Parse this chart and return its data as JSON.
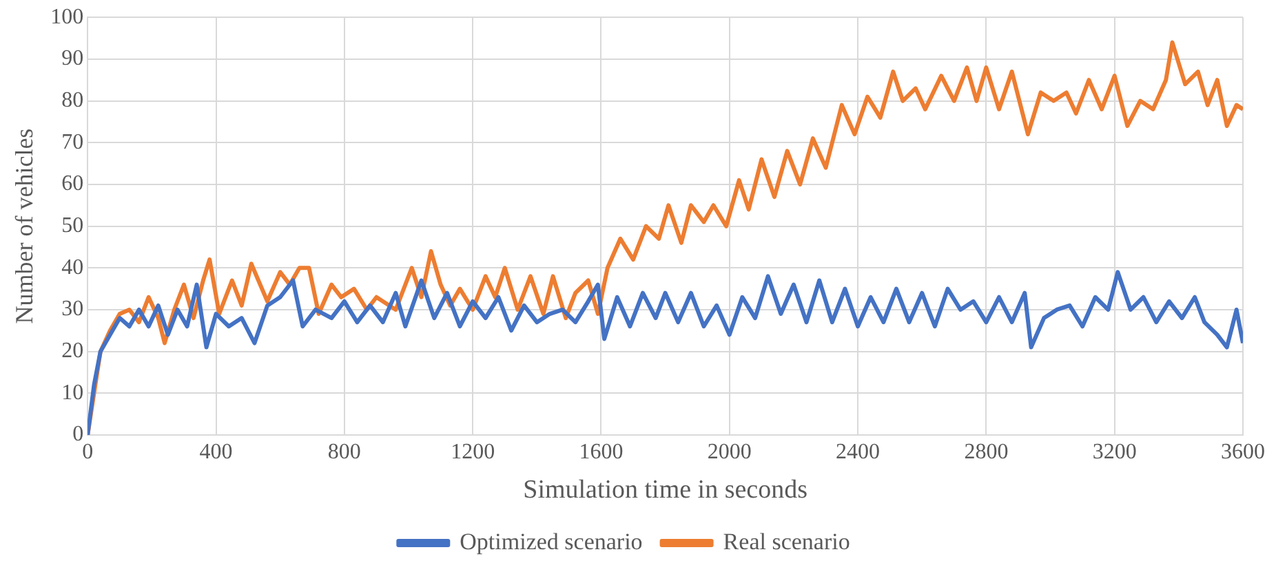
{
  "chart_data": {
    "type": "line",
    "xlabel": "Simulation time in seconds",
    "ylabel": "Number of vehicles",
    "xlim": [
      0,
      3600
    ],
    "xticks": [
      0,
      400,
      800,
      1200,
      1600,
      2000,
      2400,
      2800,
      3200,
      3600
    ],
    "ylim": [
      0,
      100
    ],
    "yticks": [
      0,
      10,
      20,
      30,
      40,
      50,
      60,
      70,
      80,
      90,
      100
    ],
    "grid": true,
    "legend": "bottom",
    "marker": "none",
    "line_style": "solid",
    "series": [
      {
        "name": "Optimized scenario",
        "color": "#4472c4",
        "x": [
          0,
          20,
          40,
          70,
          100,
          130,
          160,
          190,
          220,
          250,
          280,
          310,
          340,
          370,
          400,
          440,
          480,
          520,
          560,
          600,
          640,
          670,
          710,
          760,
          800,
          840,
          880,
          920,
          960,
          990,
          1040,
          1080,
          1120,
          1160,
          1200,
          1240,
          1280,
          1320,
          1360,
          1400,
          1440,
          1480,
          1520,
          1560,
          1590,
          1610,
          1650,
          1690,
          1730,
          1770,
          1800,
          1840,
          1880,
          1920,
          1960,
          2000,
          2040,
          2080,
          2120,
          2160,
          2200,
          2240,
          2280,
          2320,
          2360,
          2400,
          2440,
          2480,
          2520,
          2560,
          2600,
          2640,
          2680,
          2720,
          2760,
          2800,
          2840,
          2880,
          2920,
          2940,
          2980,
          3020,
          3060,
          3100,
          3140,
          3180,
          3210,
          3250,
          3290,
          3330,
          3370,
          3410,
          3450,
          3480,
          3520,
          3550,
          3580,
          3600
        ],
        "values": [
          0,
          12,
          20,
          24,
          28,
          26,
          30,
          26,
          31,
          24,
          30,
          26,
          36,
          21,
          29,
          26,
          28,
          22,
          31,
          33,
          37,
          26,
          30,
          28,
          32,
          27,
          31,
          27,
          34,
          26,
          37,
          28,
          34,
          26,
          32,
          28,
          33,
          25,
          31,
          27,
          29,
          30,
          27,
          32,
          36,
          23,
          33,
          26,
          34,
          28,
          34,
          27,
          34,
          26,
          31,
          24,
          33,
          28,
          38,
          29,
          36,
          27,
          37,
          27,
          35,
          26,
          33,
          27,
          35,
          27,
          34,
          26,
          35,
          30,
          32,
          27,
          33,
          27,
          34,
          21,
          28,
          30,
          31,
          26,
          33,
          30,
          39,
          30,
          33,
          27,
          32,
          28,
          33,
          27,
          24,
          21,
          30,
          22
        ]
      },
      {
        "name": "Real scenario",
        "color": "#ed7d31",
        "x": [
          0,
          40,
          70,
          100,
          130,
          160,
          190,
          220,
          240,
          270,
          300,
          330,
          360,
          380,
          410,
          450,
          480,
          510,
          560,
          600,
          630,
          660,
          690,
          720,
          760,
          790,
          830,
          870,
          900,
          960,
          1010,
          1040,
          1070,
          1100,
          1130,
          1160,
          1200,
          1240,
          1270,
          1300,
          1340,
          1380,
          1420,
          1450,
          1490,
          1520,
          1560,
          1590,
          1620,
          1660,
          1700,
          1740,
          1780,
          1810,
          1850,
          1880,
          1920,
          1950,
          1990,
          2030,
          2060,
          2100,
          2140,
          2180,
          2220,
          2260,
          2300,
          2350,
          2390,
          2430,
          2470,
          2510,
          2540,
          2580,
          2610,
          2660,
          2700,
          2740,
          2770,
          2800,
          2840,
          2880,
          2930,
          2970,
          3010,
          3050,
          3080,
          3120,
          3160,
          3200,
          3240,
          3280,
          3320,
          3360,
          3380,
          3420,
          3460,
          3490,
          3520,
          3550,
          3580,
          3600
        ],
        "values": [
          0,
          20,
          25,
          29,
          30,
          27,
          33,
          28,
          22,
          30,
          36,
          28,
          37,
          42,
          29,
          37,
          31,
          41,
          32,
          39,
          36,
          40,
          40,
          29,
          36,
          33,
          35,
          30,
          33,
          30,
          40,
          33,
          44,
          36,
          31,
          35,
          30,
          38,
          33,
          40,
          30,
          38,
          29,
          38,
          28,
          34,
          37,
          29,
          40,
          47,
          42,
          50,
          47,
          55,
          46,
          55,
          51,
          55,
          50,
          61,
          54,
          66,
          57,
          68,
          60,
          71,
          64,
          79,
          72,
          81,
          76,
          87,
          80,
          83,
          78,
          86,
          80,
          88,
          80,
          88,
          78,
          87,
          72,
          82,
          80,
          82,
          77,
          85,
          78,
          86,
          74,
          80,
          78,
          85,
          94,
          84,
          87,
          79,
          85,
          74,
          79,
          78
        ]
      }
    ]
  }
}
